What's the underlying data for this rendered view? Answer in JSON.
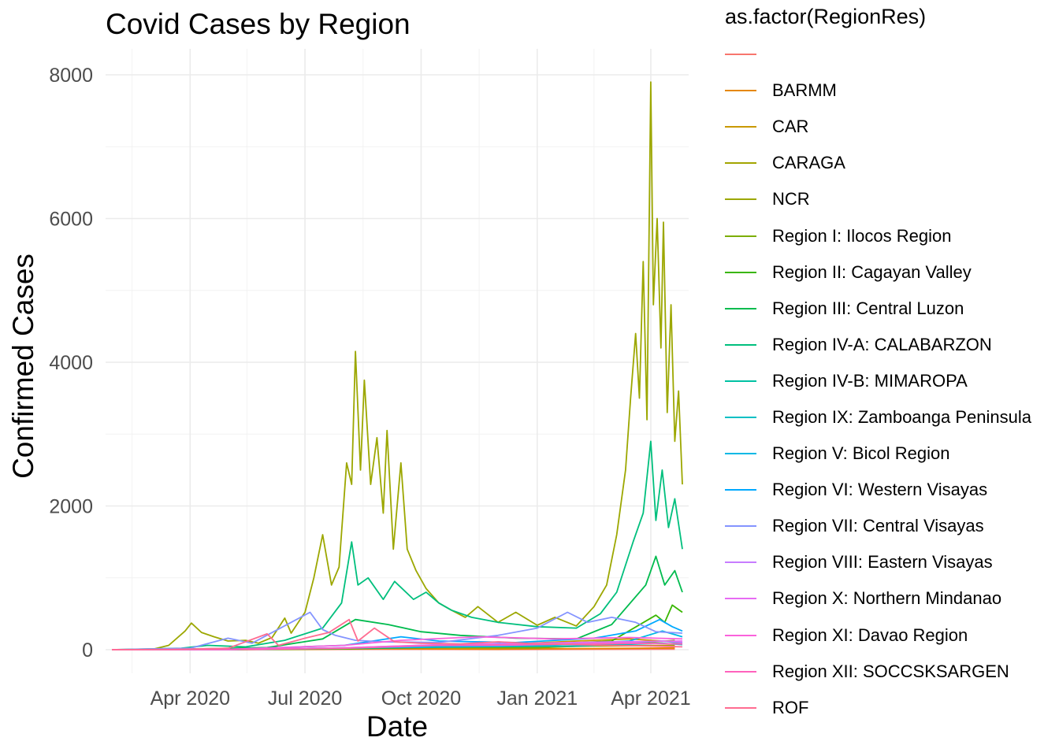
{
  "chart_data": {
    "type": "line",
    "title": "Covid Cases by Region",
    "xlabel": "Date",
    "ylabel": "Confirmed Cases",
    "x_ticks": [
      "Apr 2020",
      "Jul 2020",
      "Oct 2020",
      "Jan 2021",
      "Apr 2021"
    ],
    "y_ticks": [
      0,
      2000,
      4000,
      6000,
      8000
    ],
    "xlim": [
      "2020-01-25",
      "2021-05-01"
    ],
    "ylim": [
      0,
      8000
    ],
    "grid": true,
    "legend_title": "as.factor(RegionRes)",
    "legend_position": "right",
    "series": [
      {
        "name": "",
        "color": "#F8766D",
        "points": [
          [
            "2020-01-30",
            0
          ],
          [
            "2020-03-15",
            0
          ],
          [
            "2020-06-01",
            2
          ],
          [
            "2020-09-01",
            5
          ],
          [
            "2020-12-01",
            3
          ],
          [
            "2021-03-01",
            6
          ],
          [
            "2021-04-20",
            8
          ]
        ]
      },
      {
        "name": "BARMM",
        "color": "#E58700",
        "points": [
          [
            "2020-01-30",
            0
          ],
          [
            "2020-04-15",
            1
          ],
          [
            "2020-07-01",
            6
          ],
          [
            "2020-09-01",
            14
          ],
          [
            "2020-12-01",
            8
          ],
          [
            "2021-03-01",
            18
          ],
          [
            "2021-04-20",
            24
          ]
        ]
      },
      {
        "name": "CAR",
        "color": "#C99800",
        "points": [
          [
            "2020-01-30",
            0
          ],
          [
            "2020-04-15",
            2
          ],
          [
            "2020-07-01",
            10
          ],
          [
            "2020-09-15",
            40
          ],
          [
            "2020-12-01",
            70
          ],
          [
            "2021-02-01",
            120
          ],
          [
            "2021-03-15",
            150
          ],
          [
            "2021-04-20",
            110
          ]
        ]
      },
      {
        "name": "CARAGA",
        "color": "#A3A500",
        "points": [
          [
            "2020-01-30",
            0
          ],
          [
            "2020-05-01",
            1
          ],
          [
            "2020-08-01",
            10
          ],
          [
            "2020-10-15",
            40
          ],
          [
            "2020-12-15",
            30
          ],
          [
            "2021-02-15",
            50
          ],
          [
            "2021-04-20",
            60
          ]
        ]
      },
      {
        "name": "NCR",
        "color": "#9CA700",
        "points": [
          [
            "2020-01-30",
            0
          ],
          [
            "2020-03-01",
            0
          ],
          [
            "2020-03-15",
            60
          ],
          [
            "2020-03-28",
            260
          ],
          [
            "2020-04-02",
            370
          ],
          [
            "2020-04-10",
            240
          ],
          [
            "2020-04-20",
            180
          ],
          [
            "2020-05-01",
            120
          ],
          [
            "2020-05-15",
            130
          ],
          [
            "2020-05-25",
            90
          ],
          [
            "2020-06-05",
            170
          ],
          [
            "2020-06-15",
            440
          ],
          [
            "2020-06-20",
            230
          ],
          [
            "2020-07-01",
            520
          ],
          [
            "2020-07-08",
            1000
          ],
          [
            "2020-07-15",
            1600
          ],
          [
            "2020-07-22",
            900
          ],
          [
            "2020-07-28",
            1150
          ],
          [
            "2020-08-03",
            2600
          ],
          [
            "2020-08-07",
            2300
          ],
          [
            "2020-08-10",
            4150
          ],
          [
            "2020-08-14",
            2500
          ],
          [
            "2020-08-17",
            3750
          ],
          [
            "2020-08-22",
            2300
          ],
          [
            "2020-08-27",
            2950
          ],
          [
            "2020-09-01",
            1900
          ],
          [
            "2020-09-04",
            3050
          ],
          [
            "2020-09-09",
            1400
          ],
          [
            "2020-09-15",
            2600
          ],
          [
            "2020-09-20",
            1400
          ],
          [
            "2020-09-27",
            1100
          ],
          [
            "2020-10-05",
            850
          ],
          [
            "2020-10-15",
            650
          ],
          [
            "2020-10-25",
            550
          ],
          [
            "2020-11-05",
            450
          ],
          [
            "2020-11-15",
            600
          ],
          [
            "2020-12-01",
            380
          ],
          [
            "2020-12-15",
            520
          ],
          [
            "2021-01-01",
            340
          ],
          [
            "2021-01-15",
            450
          ],
          [
            "2021-02-01",
            330
          ],
          [
            "2021-02-15",
            600
          ],
          [
            "2021-02-25",
            900
          ],
          [
            "2021-03-05",
            1600
          ],
          [
            "2021-03-12",
            2500
          ],
          [
            "2021-03-16",
            3500
          ],
          [
            "2021-03-20",
            4400
          ],
          [
            "2021-03-23",
            3500
          ],
          [
            "2021-03-26",
            5400
          ],
          [
            "2021-03-29",
            3200
          ],
          [
            "2021-04-01",
            7900
          ],
          [
            "2021-04-03",
            4800
          ],
          [
            "2021-04-06",
            6000
          ],
          [
            "2021-04-09",
            4200
          ],
          [
            "2021-04-11",
            5950
          ],
          [
            "2021-04-14",
            3300
          ],
          [
            "2021-04-17",
            4800
          ],
          [
            "2021-04-20",
            2900
          ],
          [
            "2021-04-23",
            3600
          ],
          [
            "2021-04-26",
            2300
          ]
        ]
      },
      {
        "name": "Region I: Ilocos Region",
        "color": "#7CAE00",
        "points": [
          [
            "2020-01-30",
            0
          ],
          [
            "2020-05-01",
            2
          ],
          [
            "2020-08-01",
            18
          ],
          [
            "2020-10-15",
            30
          ],
          [
            "2021-01-01",
            25
          ],
          [
            "2021-03-15",
            80
          ],
          [
            "2021-04-20",
            130
          ]
        ]
      },
      {
        "name": "Region II: Cagayan Valley",
        "color": "#39B600",
        "points": [
          [
            "2020-01-30",
            0
          ],
          [
            "2020-05-01",
            1
          ],
          [
            "2020-08-01",
            12
          ],
          [
            "2020-11-01",
            40
          ],
          [
            "2021-01-15",
            80
          ],
          [
            "2021-03-01",
            120
          ],
          [
            "2021-04-05",
            480
          ],
          [
            "2021-04-12",
            380
          ],
          [
            "2021-04-18",
            620
          ],
          [
            "2021-04-26",
            520
          ]
        ]
      },
      {
        "name": "Region III: Central Luzon",
        "color": "#00BB4E",
        "points": [
          [
            "2020-01-30",
            0
          ],
          [
            "2020-04-01",
            10
          ],
          [
            "2020-06-01",
            30
          ],
          [
            "2020-07-15",
            150
          ],
          [
            "2020-08-10",
            420
          ],
          [
            "2020-09-05",
            350
          ],
          [
            "2020-10-01",
            250
          ],
          [
            "2020-11-01",
            200
          ],
          [
            "2020-12-15",
            160
          ],
          [
            "2021-02-01",
            150
          ],
          [
            "2021-03-01",
            350
          ],
          [
            "2021-03-28",
            900
          ],
          [
            "2021-04-05",
            1300
          ],
          [
            "2021-04-12",
            900
          ],
          [
            "2021-04-20",
            1100
          ],
          [
            "2021-04-26",
            800
          ]
        ]
      },
      {
        "name": "Region IV-A: CALABARZON",
        "color": "#00BF7D",
        "points": [
          [
            "2020-01-30",
            0
          ],
          [
            "2020-03-25",
            20
          ],
          [
            "2020-04-15",
            60
          ],
          [
            "2020-05-15",
            40
          ],
          [
            "2020-06-15",
            130
          ],
          [
            "2020-07-15",
            300
          ],
          [
            "2020-07-30",
            650
          ],
          [
            "2020-08-07",
            1500
          ],
          [
            "2020-08-12",
            900
          ],
          [
            "2020-08-20",
            1000
          ],
          [
            "2020-09-01",
            700
          ],
          [
            "2020-09-10",
            950
          ],
          [
            "2020-09-25",
            700
          ],
          [
            "2020-10-05",
            800
          ],
          [
            "2020-10-15",
            650
          ],
          [
            "2020-10-25",
            550
          ],
          [
            "2020-11-10",
            450
          ],
          [
            "2020-12-01",
            380
          ],
          [
            "2021-01-01",
            320
          ],
          [
            "2021-02-01",
            300
          ],
          [
            "2021-02-20",
            500
          ],
          [
            "2021-03-05",
            800
          ],
          [
            "2021-03-18",
            1500
          ],
          [
            "2021-03-26",
            1900
          ],
          [
            "2021-04-01",
            2900
          ],
          [
            "2021-04-05",
            1800
          ],
          [
            "2021-04-10",
            2500
          ],
          [
            "2021-04-15",
            1700
          ],
          [
            "2021-04-20",
            2100
          ],
          [
            "2021-04-26",
            1400
          ]
        ]
      },
      {
        "name": "Region IV-B: MIMAROPA",
        "color": "#00C1A3",
        "points": [
          [
            "2020-01-30",
            0
          ],
          [
            "2020-05-01",
            2
          ],
          [
            "2020-08-01",
            20
          ],
          [
            "2020-11-01",
            40
          ],
          [
            "2021-02-01",
            50
          ],
          [
            "2021-04-10",
            120
          ],
          [
            "2021-04-26",
            90
          ]
        ]
      },
      {
        "name": "Region IX: Zamboanga Peninsula",
        "color": "#00BFC4",
        "points": [
          [
            "2020-01-30",
            0
          ],
          [
            "2020-05-01",
            2
          ],
          [
            "2020-08-15",
            25
          ],
          [
            "2020-11-01",
            60
          ],
          [
            "2021-02-01",
            50
          ],
          [
            "2021-04-10",
            90
          ],
          [
            "2021-04-26",
            70
          ]
        ]
      },
      {
        "name": "Region V: Bicol Region",
        "color": "#00B8E5",
        "points": [
          [
            "2020-01-30",
            0
          ],
          [
            "2020-05-01",
            3
          ],
          [
            "2020-08-15",
            30
          ],
          [
            "2020-11-01",
            40
          ],
          [
            "2021-01-15",
            70
          ],
          [
            "2021-03-15",
            120
          ],
          [
            "2021-04-10",
            260
          ],
          [
            "2021-04-26",
            180
          ]
        ]
      },
      {
        "name": "Region VI: Western Visayas",
        "color": "#00A9FF",
        "points": [
          [
            "2020-01-30",
            0
          ],
          [
            "2020-05-01",
            5
          ],
          [
            "2020-08-01",
            60
          ],
          [
            "2020-09-15",
            180
          ],
          [
            "2020-10-15",
            120
          ],
          [
            "2020-12-15",
            100
          ],
          [
            "2021-02-15",
            160
          ],
          [
            "2021-03-20",
            260
          ],
          [
            "2021-04-08",
            420
          ],
          [
            "2021-04-18",
            320
          ],
          [
            "2021-04-26",
            260
          ]
        ]
      },
      {
        "name": "Region VII: Central Visayas",
        "color": "#8494FF",
        "points": [
          [
            "2020-01-30",
            0
          ],
          [
            "2020-04-01",
            20
          ],
          [
            "2020-05-01",
            160
          ],
          [
            "2020-05-20",
            90
          ],
          [
            "2020-06-20",
            380
          ],
          [
            "2020-07-05",
            520
          ],
          [
            "2020-07-15",
            280
          ],
          [
            "2020-07-25",
            200
          ],
          [
            "2020-08-10",
            130
          ],
          [
            "2020-09-01",
            110
          ],
          [
            "2020-10-15",
            100
          ],
          [
            "2020-12-01",
            200
          ],
          [
            "2021-01-01",
            300
          ],
          [
            "2021-01-25",
            520
          ],
          [
            "2021-02-10",
            380
          ],
          [
            "2021-03-01",
            450
          ],
          [
            "2021-03-20",
            380
          ],
          [
            "2021-04-05",
            250
          ],
          [
            "2021-04-26",
            230
          ]
        ]
      },
      {
        "name": "Region VIII: Eastern Visayas",
        "color": "#C77CFF",
        "points": [
          [
            "2020-01-30",
            0
          ],
          [
            "2020-05-01",
            2
          ],
          [
            "2020-08-01",
            25
          ],
          [
            "2020-10-01",
            60
          ],
          [
            "2020-12-01",
            60
          ],
          [
            "2021-02-01",
            80
          ],
          [
            "2021-04-10",
            120
          ],
          [
            "2021-04-26",
            100
          ]
        ]
      },
      {
        "name": "Region X: Northern Mindanao",
        "color": "#E76BF3",
        "points": [
          [
            "2020-01-30",
            0
          ],
          [
            "2020-05-01",
            2
          ],
          [
            "2020-08-01",
            25
          ],
          [
            "2020-10-15",
            70
          ],
          [
            "2021-01-01",
            90
          ],
          [
            "2021-03-01",
            110
          ],
          [
            "2021-04-26",
            120
          ]
        ]
      },
      {
        "name": "Region XI: Davao Region",
        "color": "#FA62DB",
        "points": [
          [
            "2020-01-30",
            0
          ],
          [
            "2020-05-01",
            5
          ],
          [
            "2020-08-01",
            60
          ],
          [
            "2020-09-15",
            130
          ],
          [
            "2020-11-15",
            180
          ],
          [
            "2021-01-15",
            150
          ],
          [
            "2021-03-15",
            170
          ],
          [
            "2021-04-26",
            150
          ]
        ]
      },
      {
        "name": "Region XII: SOCCSKSARGEN",
        "color": "#FF62BC",
        "points": [
          [
            "2020-01-30",
            0
          ],
          [
            "2020-05-01",
            2
          ],
          [
            "2020-08-01",
            20
          ],
          [
            "2020-10-15",
            60
          ],
          [
            "2021-01-01",
            70
          ],
          [
            "2021-03-15",
            90
          ],
          [
            "2021-04-26",
            80
          ]
        ]
      },
      {
        "name": "ROF",
        "color": "#FF6C91",
        "points": [
          [
            "2020-01-30",
            0
          ],
          [
            "2020-03-20",
            4
          ],
          [
            "2020-05-01",
            20
          ],
          [
            "2020-06-01",
            220
          ],
          [
            "2020-06-10",
            60
          ],
          [
            "2020-07-01",
            160
          ],
          [
            "2020-07-20",
            240
          ],
          [
            "2020-08-05",
            420
          ],
          [
            "2020-08-12",
            120
          ],
          [
            "2020-08-25",
            300
          ],
          [
            "2020-09-10",
            110
          ],
          [
            "2020-10-01",
            90
          ],
          [
            "2020-11-01",
            80
          ],
          [
            "2020-12-01",
            110
          ],
          [
            "2021-01-01",
            80
          ],
          [
            "2021-02-01",
            70
          ],
          [
            "2021-03-01",
            60
          ],
          [
            "2021-04-01",
            50
          ],
          [
            "2021-04-26",
            40
          ]
        ]
      }
    ]
  }
}
